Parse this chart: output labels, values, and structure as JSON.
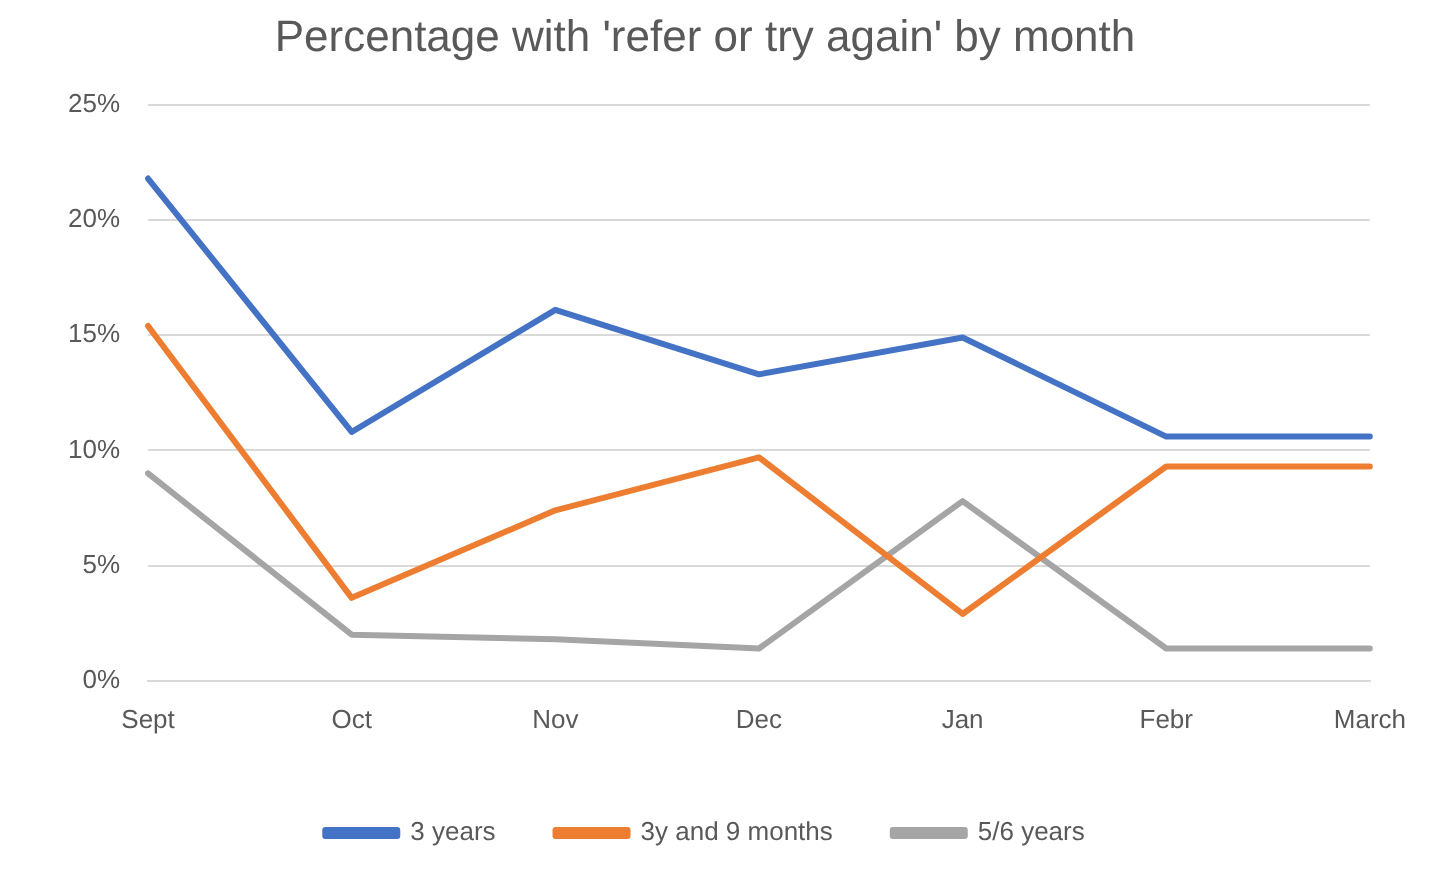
{
  "chart_data": {
    "type": "line",
    "title": "Percentage with 'refer or try again' by month",
    "categories": [
      "Sept",
      "Oct",
      "Nov",
      "Dec",
      "Jan",
      "Febr",
      "March"
    ],
    "series": [
      {
        "name": "3 years",
        "color": "#4472c4",
        "values": [
          21.8,
          10.8,
          16.1,
          13.3,
          14.9,
          10.6,
          10.6
        ]
      },
      {
        "name": "3y and 9 months",
        "color": "#ed7d31",
        "values": [
          15.4,
          3.6,
          7.4,
          9.7,
          2.9,
          9.3,
          9.3
        ]
      },
      {
        "name": "5/6 years",
        "color": "#a5a5a5",
        "values": [
          9.0,
          2.0,
          1.8,
          1.4,
          7.8,
          1.4,
          1.4
        ]
      }
    ],
    "ylim": [
      0,
      25
    ],
    "yticks": [
      {
        "value": 0,
        "label": "0%"
      },
      {
        "value": 5,
        "label": "5%"
      },
      {
        "value": 10,
        "label": "10%"
      },
      {
        "value": 15,
        "label": "15%"
      },
      {
        "value": 20,
        "label": "20%"
      },
      {
        "value": 25,
        "label": "25%"
      }
    ],
    "grid": "y",
    "legend": "bottom",
    "marker": "none",
    "line_style": "solid"
  }
}
